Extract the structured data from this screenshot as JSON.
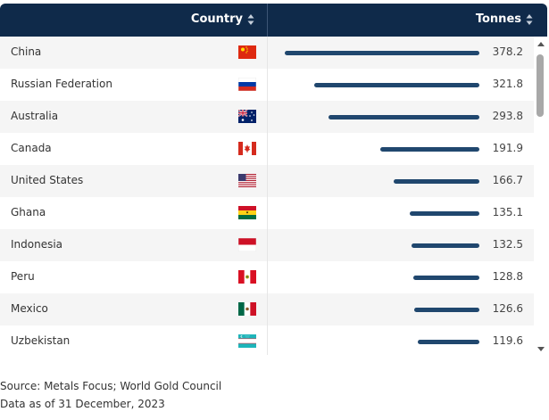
{
  "header": {
    "country_label": "Country",
    "tonnes_label": "Tonnes",
    "header_bg": "#0f2a4a"
  },
  "bar_color": "#20476e",
  "rows": [
    {
      "country": "China",
      "value": "378.2",
      "amount": 378.2,
      "flag": "china-flag-icon"
    },
    {
      "country": "Russian Federation",
      "value": "321.8",
      "amount": 321.8,
      "flag": "russia-flag-icon"
    },
    {
      "country": "Australia",
      "value": "293.8",
      "amount": 293.8,
      "flag": "australia-flag-icon"
    },
    {
      "country": "Canada",
      "value": "191.9",
      "amount": 191.9,
      "flag": "canada-flag-icon"
    },
    {
      "country": "United States",
      "value": "166.7",
      "amount": 166.7,
      "flag": "usa-flag-icon"
    },
    {
      "country": "Ghana",
      "value": "135.1",
      "amount": 135.1,
      "flag": "ghana-flag-icon"
    },
    {
      "country": "Indonesia",
      "value": "132.5",
      "amount": 132.5,
      "flag": "indonesia-flag-icon"
    },
    {
      "country": "Peru",
      "value": "128.8",
      "amount": 128.8,
      "flag": "peru-flag-icon"
    },
    {
      "country": "Mexico",
      "value": "126.6",
      "amount": 126.6,
      "flag": "mexico-flag-icon"
    },
    {
      "country": "Uzbekistan",
      "value": "119.6",
      "amount": 119.6,
      "flag": "uzbekistan-flag-icon"
    }
  ],
  "footer": {
    "source": "Source: Metals Focus; World Gold Council",
    "date": "Data as of 31 December, 2023"
  }
}
